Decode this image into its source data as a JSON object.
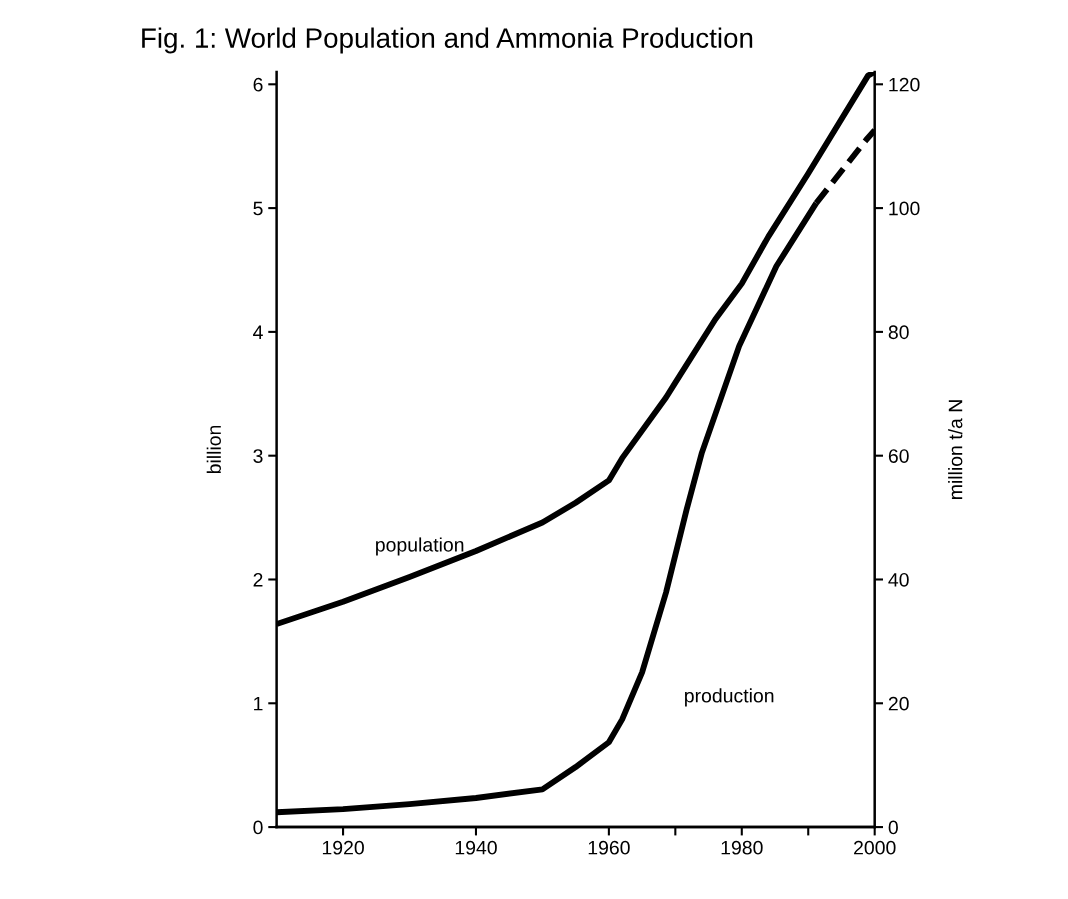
{
  "chart_data": {
    "type": "line",
    "title": "Fig. 1: World Population and Ammonia Production",
    "ylabel": "billion",
    "y2label": "million t/a N",
    "xlim": [
      1910,
      2000
    ],
    "xticks": [
      1920,
      1940,
      1960,
      {
        "value": 1970,
        "label": null
      },
      1980,
      {
        "value": 1990,
        "label": null
      },
      2000
    ],
    "ylim": [
      0,
      6.1
    ],
    "yticks": [
      0,
      1,
      2,
      3,
      4,
      5,
      6
    ],
    "y2lim": [
      0,
      122
    ],
    "y2ticks": [
      0,
      20,
      40,
      60,
      80,
      100,
      120
    ],
    "grid": false,
    "legend": false,
    "marker": "none",
    "series": [
      {
        "name": "population",
        "color": "#000000",
        "line_style": "solid",
        "x": [
          1910,
          1920,
          1930,
          1940,
          1950,
          1955,
          1960,
          1962,
          1968.6,
          1970,
          1976,
          1980,
          1984,
          1990,
          1999,
          2000
        ],
        "values": [
          1.64,
          1.82,
          2.02,
          2.23,
          2.46,
          2.62,
          2.8,
          2.98,
          3.47,
          3.59,
          4.1,
          4.39,
          4.77,
          5.28,
          6.07,
          6.1
        ]
      },
      {
        "name": "production",
        "color": "#000000",
        "axis": "y2",
        "line_style": "solid",
        "x": [
          1910,
          1920,
          1930,
          1940,
          1950,
          1955,
          1960,
          1962,
          1965,
          1968.6,
          1971.7,
          1974,
          1979.6,
          1985.2,
          1991.2
        ],
        "values": [
          2.4,
          2.9,
          3.7,
          4.7,
          6.1,
          9.7,
          13.7,
          17.4,
          25,
          37.9,
          51.3,
          60.5,
          77.7,
          90.6,
          100.8
        ]
      },
      {
        "color": "#000000",
        "axis": "y2",
        "line_style": "dashed",
        "x": [
          1991.2,
          1998.7,
          2000
        ],
        "values": [
          100.8,
          111,
          112.6
        ]
      }
    ]
  }
}
